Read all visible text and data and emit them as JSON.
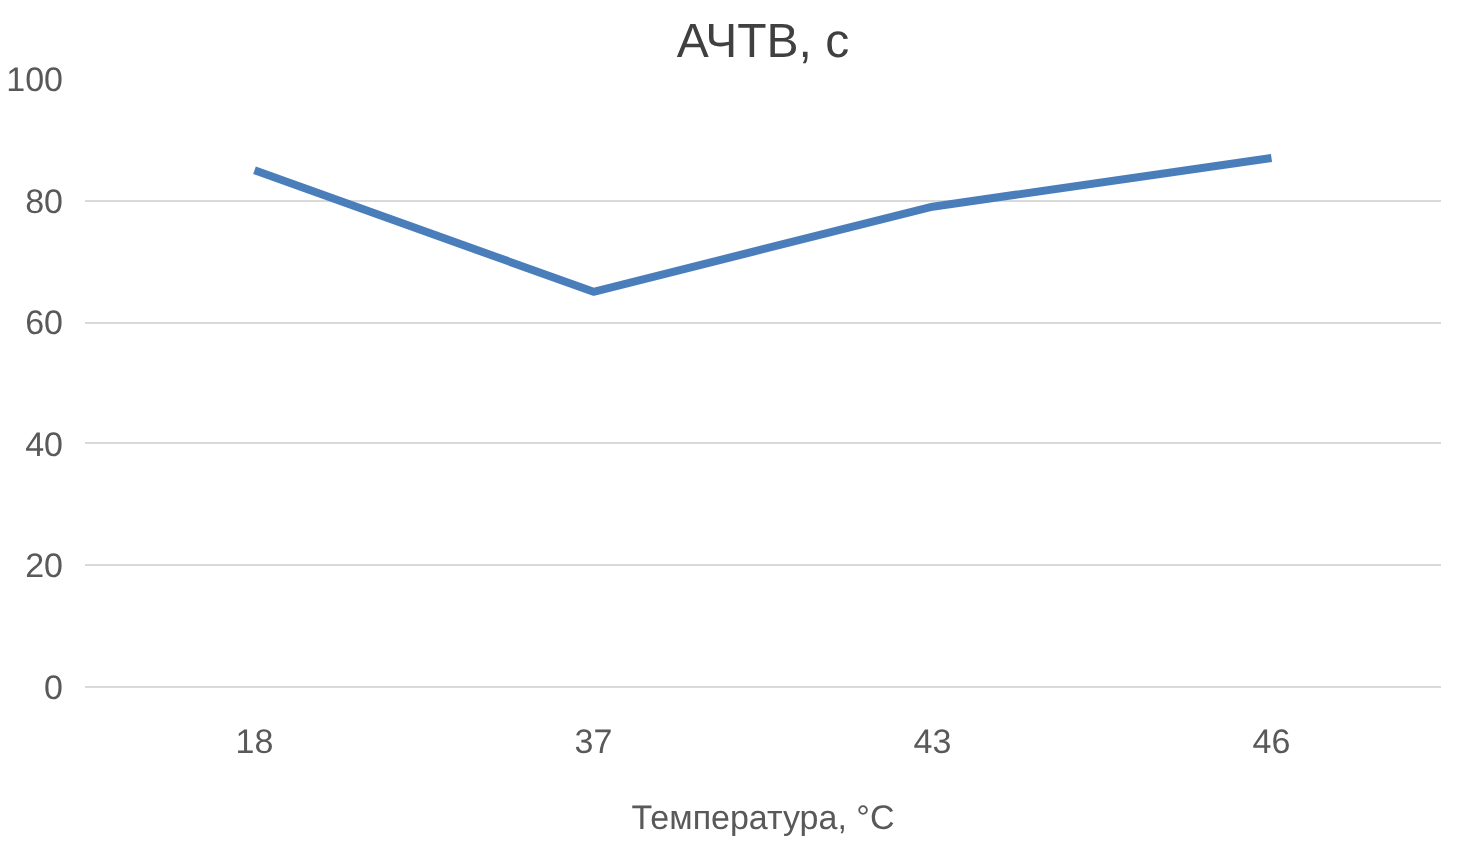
{
  "chart_data": {
    "type": "line",
    "title": "АЧТВ, с",
    "xlabel": "Температура, °C",
    "categories": [
      "18",
      "37",
      "43",
      "46"
    ],
    "series": [
      {
        "color": "#4a7ebb",
        "values": [
          85,
          65,
          79,
          87
        ]
      }
    ],
    "ylim": [
      0,
      100
    ],
    "yticks": [
      0,
      20,
      40,
      60,
      80,
      100
    ],
    "grid": "y",
    "marker": "none",
    "line_style": "solid"
  }
}
